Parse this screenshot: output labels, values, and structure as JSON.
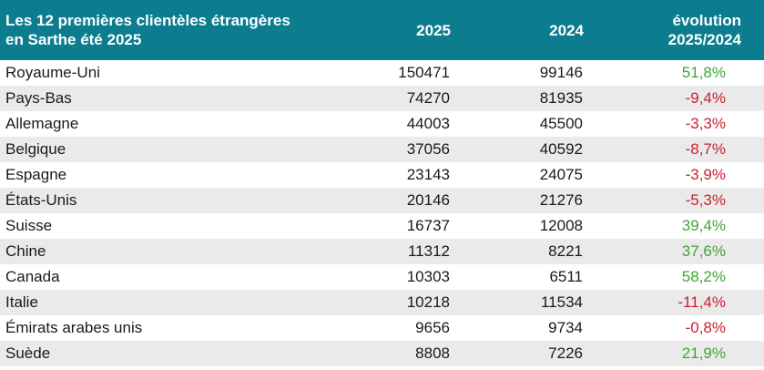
{
  "header": {
    "title_line1": "Les 12 premières clientèles étrangères",
    "title_line2": "en Sarthe été 2025",
    "col_2025": "2025",
    "col_2024": "2024",
    "col_evo_line1": "évolution",
    "col_evo_line2": "2025/2024"
  },
  "colors": {
    "header_bg": "#0c7c8f",
    "positive": "#3fa535",
    "negative": "#cc1f2d",
    "stripe": "#eaeaea"
  },
  "rows": [
    {
      "country": "Royaume-Uni",
      "v2025": "150471",
      "v2024": "99146",
      "evo": "51,8%",
      "trend": "pos"
    },
    {
      "country": "Pays-Bas",
      "v2025": "74270",
      "v2024": "81935",
      "evo": "-9,4%",
      "trend": "neg"
    },
    {
      "country": "Allemagne",
      "v2025": "44003",
      "v2024": "45500",
      "evo": "-3,3%",
      "trend": "neg"
    },
    {
      "country": "Belgique",
      "v2025": "37056",
      "v2024": "40592",
      "evo": "-8,7%",
      "trend": "neg"
    },
    {
      "country": "Espagne",
      "v2025": "23143",
      "v2024": "24075",
      "evo": "-3,9%",
      "trend": "neg"
    },
    {
      "country": "États-Unis",
      "v2025": "20146",
      "v2024": "21276",
      "evo": "-5,3%",
      "trend": "neg"
    },
    {
      "country": "Suisse",
      "v2025": "16737",
      "v2024": "12008",
      "evo": "39,4%",
      "trend": "pos"
    },
    {
      "country": "Chine",
      "v2025": "11312",
      "v2024": "8221",
      "evo": "37,6%",
      "trend": "pos"
    },
    {
      "country": "Canada",
      "v2025": "10303",
      "v2024": "6511",
      "evo": "58,2%",
      "trend": "pos"
    },
    {
      "country": "Italie",
      "v2025": "10218",
      "v2024": "11534",
      "evo": "-11,4%",
      "trend": "neg"
    },
    {
      "country": "Émirats arabes unis",
      "v2025": "9656",
      "v2024": "9734",
      "evo": "-0,8%",
      "trend": "neg"
    },
    {
      "country": "Suède",
      "v2025": "8808",
      "v2024": "7226",
      "evo": "21,9%",
      "trend": "pos"
    }
  ]
}
